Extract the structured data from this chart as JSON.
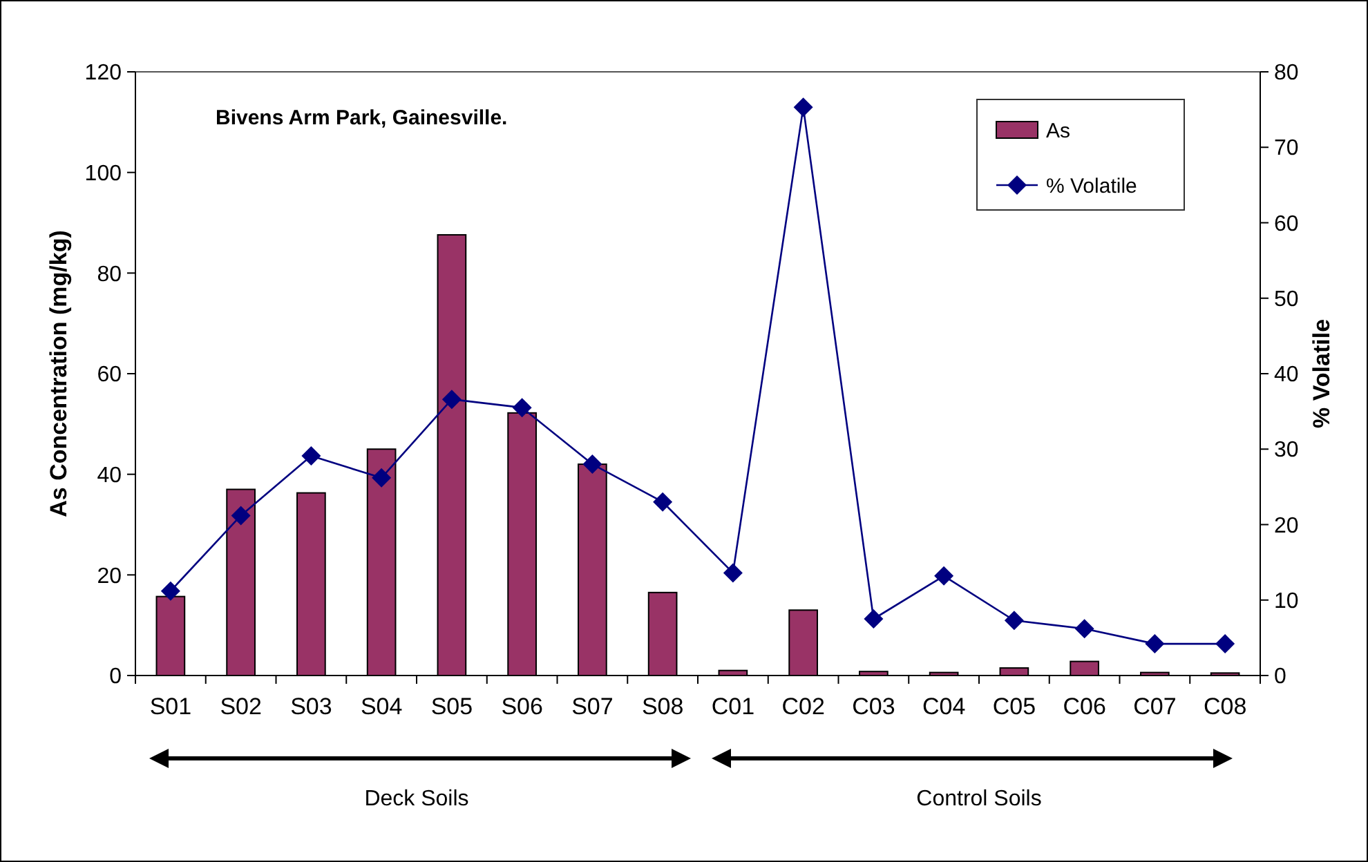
{
  "chart_data": {
    "type": "bar",
    "title": "Bivens Arm Park, Gainesville.",
    "ylabel": "As Concentration (mg/kg)",
    "y2label": "% Volatile",
    "categories": [
      "S01",
      "S02",
      "S03",
      "S04",
      "S05",
      "S06",
      "S07",
      "S08",
      "C01",
      "C02",
      "C03",
      "C04",
      "C05",
      "C06",
      "C07",
      "C08"
    ],
    "series": [
      {
        "name": "As",
        "color": "#993366",
        "values": [
          15.7,
          37,
          36.3,
          45,
          87.6,
          52.2,
          42,
          16.5,
          1,
          13,
          0.8,
          0.6,
          1.5,
          2.8,
          0.6,
          0.5
        ]
      },
      {
        "name": "% Volatile",
        "type": "line",
        "axis": "y2",
        "color": "#000080",
        "marker": "diamond",
        "values": [
          11.2,
          21.2,
          29.1,
          26.2,
          36.6,
          35.5,
          28,
          23,
          13.6,
          75.3,
          7.5,
          13.2,
          7.3,
          6.2,
          4.2,
          4.2
        ]
      }
    ],
    "ylim": [
      0,
      120
    ],
    "yticks": [
      0,
      20,
      40,
      60,
      80,
      100,
      120
    ],
    "y2lim": [
      0,
      80
    ],
    "y2ticks": [
      0,
      10,
      20,
      30,
      40,
      50,
      60,
      70,
      80
    ],
    "legend": "top right",
    "grid": false,
    "annotations": [
      "Deck Soils",
      "Control Soils"
    ]
  }
}
